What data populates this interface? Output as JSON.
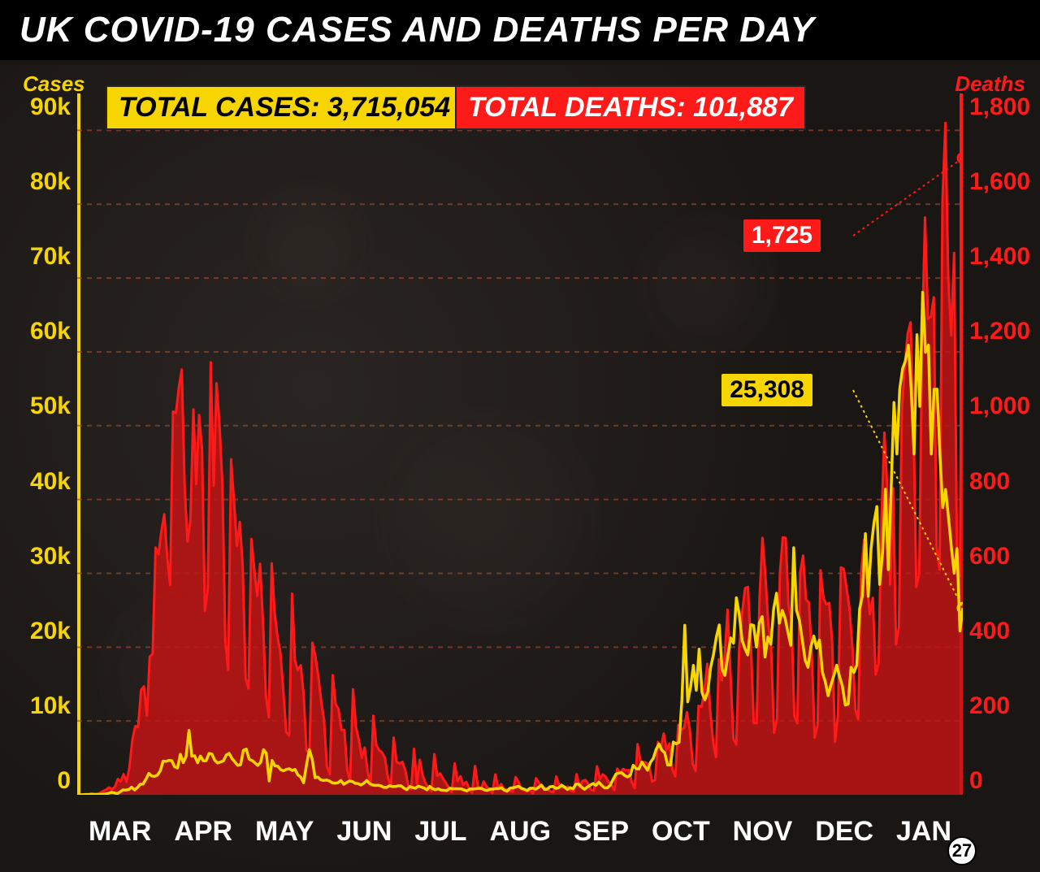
{
  "title": "UK COVID-19 CASES AND DEATHS PER DAY",
  "totals": {
    "cases_label": "TOTAL CASES: 3,715,054",
    "deaths_label": "TOTAL DEATHS: 101,887"
  },
  "axis_titles": {
    "left": "Cases",
    "right": "Deaths"
  },
  "y_left": {
    "ticks": [
      "90k",
      "80k",
      "70k",
      "60k",
      "50k",
      "40k",
      "30k",
      "20k",
      "10k",
      "0"
    ],
    "min": 0,
    "max": 95000,
    "color": "#f7d500",
    "fontsize": 30,
    "fontweight": 900
  },
  "y_right": {
    "ticks": [
      "1,800",
      "1,600",
      "1,400",
      "1,200",
      "1,000",
      "800",
      "600",
      "400",
      "200",
      "0"
    ],
    "min": 0,
    "max": 1900,
    "color": "#ff1a1a",
    "fontsize": 30,
    "fontweight": 900
  },
  "x_labels": [
    "MAR",
    "APR",
    "MAY",
    "JUN",
    "JUL",
    "AUG",
    "SEP",
    "OCT",
    "NOV",
    "DEC",
    "JAN"
  ],
  "x_label_style": {
    "color": "#ffffff",
    "fontsize": 34,
    "fontweight": 900
  },
  "callouts": {
    "deaths": {
      "value": "1,725",
      "bg": "#ff1a1a",
      "fg": "#ffffff"
    },
    "cases": {
      "value": "25,308",
      "bg": "#f7d500",
      "fg": "#000000"
    }
  },
  "date_marker": {
    "label": "27"
  },
  "chart": {
    "type": "dual-axis-line-area",
    "background": "#1a1614",
    "grid_color_yellow": "rgba(128,112,64,0.5)",
    "grid_color_red": "rgba(200,30,30,0.35)",
    "grid_dash": "6 6",
    "axis_line_width": 4,
    "n_points": 333,
    "deaths_series": {
      "color_stroke": "#ff1a1a",
      "color_fill": "rgba(200,20,20,0.82)",
      "line_width": 3,
      "y_axis": "right",
      "values": [
        0,
        0,
        1,
        2,
        2,
        4,
        2,
        1,
        6,
        10,
        14,
        20,
        14,
        22,
        43,
        36,
        56,
        35,
        74,
        149,
        186,
        183,
        284,
        294,
        214,
        374,
        382,
        670,
        652,
        714,
        760,
        644,
        568,
        1038,
        1034,
        1103,
        1152,
        839,
        686,
        744,
        1044,
        842,
        1029,
        935,
        498,
        559,
        1172,
        837,
        1115,
        1005,
        843,
        420,
        338,
        909,
        795,
        674,
        739,
        621,
        315,
        288,
        693,
        610,
        539,
        626,
        468,
        268,
        210,
        627,
        494,
        428,
        384,
        282,
        170,
        160,
        545,
        363,
        338,
        351,
        269,
        118,
        121,
        412,
        377,
        324,
        256,
        204,
        77,
        55,
        324,
        245,
        233,
        176,
        176,
        67,
        38,
        286,
        184,
        149,
        100,
        128,
        65,
        25,
        214,
        135,
        121,
        115,
        100,
        48,
        22,
        155,
        89,
        85,
        89,
        67,
        27,
        15,
        125,
        30,
        95,
        52,
        31,
        19,
        10,
        110,
        51,
        58,
        44,
        32,
        19,
        7,
        85,
        37,
        50,
        27,
        35,
        17,
        6,
        78,
        24,
        14,
        36,
        22,
        14,
        5,
        55,
        19,
        29,
        16,
        14,
        11,
        8,
        48,
        35,
        15,
        13,
        9,
        13,
        2,
        45,
        33,
        22,
        18,
        16,
        9,
        7,
        50,
        26,
        20,
        21,
        22,
        11,
        9,
        56,
        21,
        37,
        40,
        30,
        13,
        11,
        77,
        43,
        55,
        49,
        35,
        27,
        13,
        71,
        60,
        70,
        66,
        67,
        34,
        18,
        137,
        90,
        89,
        87,
        78,
        36,
        40,
        143,
        126,
        166,
        121,
        139,
        68,
        50,
        189,
        177,
        180,
        224,
        174,
        84,
        65,
        241,
        238,
        280,
        355,
        229,
        143,
        102,
        367,
        310,
        378,
        501,
        326,
        151,
        136,
        397,
        492,
        560,
        563,
        413,
        195,
        194,
        532,
        696,
        595,
        462,
        398,
        168,
        206,
        599,
        697,
        696,
        511,
        479,
        213,
        194,
        603,
        648,
        529,
        521,
        376,
        155,
        190,
        608,
        533,
        516,
        520,
        414,
        144,
        215,
        616,
        612,
        559,
        504,
        397,
        231,
        205,
        602,
        691,
        574,
        489,
        534,
        326,
        357,
        744,
        981,
        829,
        570,
        830,
        407,
        455,
        1041,
        1162,
        1248,
        1280,
        1035,
        563,
        599,
        1243,
        1564,
        1290,
        1295,
        1348,
        671,
        610,
        1610,
        1820,
        1401,
        1245,
        1468,
        631,
        592,
        1725
      ]
    },
    "cases_series": {
      "color_stroke": "#f7d500",
      "line_width": 3.5,
      "y_axis": "left",
      "marker_end": {
        "shape": "circle",
        "radius": 6,
        "stroke": "#f7d500",
        "fill": "none"
      },
      "values": [
        12,
        5,
        12,
        35,
        29,
        48,
        45,
        69,
        43,
        77,
        130,
        208,
        342,
        251,
        152,
        407,
        676,
        643,
        714,
        1035,
        665,
        967,
        1427,
        1452,
        2129,
        2890,
        2556,
        2502,
        2665,
        3250,
        4567,
        4522,
        4672,
        4618,
        3802,
        3634,
        5491,
        4344,
        5195,
        8719,
        5234,
        5288,
        4342,
        5252,
        4603,
        4617,
        5599,
        5525,
        4676,
        4301,
        4451,
        4583,
        5386,
        5614,
        4913,
        4463,
        3996,
        4076,
        6032,
        6201,
        4806,
        4649,
        4339,
        3985,
        4406,
        6111,
        5614,
        1887,
        4649,
        3923,
        3877,
        3403,
        3242,
        3446,
        3534,
        3287,
        3451,
        2684,
        2412,
        1625,
        4043,
        6111,
        4806,
        2312,
        2405,
        2013,
        1936,
        2004,
        1887,
        1613,
        1570,
        1625,
        1952,
        1427,
        1650,
        1871,
        1805,
        1557,
        1514,
        1326,
        1570,
        1940,
        1541,
        1346,
        1266,
        1295,
        1205,
        1006,
        1003,
        1240,
        1111,
        1118,
        1218,
        1213,
        901,
        689,
        1115,
        1006,
        890,
        1162,
        1052,
        922,
        674,
        1148,
        815,
        689,
        827,
        624,
        609,
        564,
        890,
        819,
        827,
        816,
        820,
        650,
        530,
        778,
        778,
        827,
        869,
        880,
        672,
        581,
        768,
        769,
        846,
        823,
        945,
        631,
        493,
        890,
        950,
        1052,
        1148,
        871,
        747,
        574,
        880,
        892,
        763,
        1009,
        1311,
        744,
        758,
        1089,
        1129,
        880,
        950,
        1311,
        1062,
        711,
        972,
        812,
        1440,
        1441,
        1033,
        747,
        1041,
        1295,
        1522,
        1276,
        1715,
        1288,
        938,
        950,
        1295,
        2087,
        2813,
        2948,
        2988,
        2621,
        2420,
        2659,
        3991,
        3539,
        3497,
        4422,
        3899,
        3330,
        4368,
        4926,
        6178,
        6874,
        6042,
        5693,
        4044,
        4044,
        7143,
        6914,
        7108,
        12872,
        22961,
        12594,
        14542,
        17540,
        14162,
        19724,
        13864,
        12872,
        13972,
        17234,
        18980,
        21331,
        23012,
        16982,
        16171,
        18804,
        21242,
        20530,
        26688,
        24405,
        20890,
        19790,
        18950,
        23065,
        22950,
        20018,
        23287,
        24141,
        18662,
        21363,
        20412,
        25177,
        27301,
        23254,
        24962,
        23904,
        21994,
        20252,
        33470,
        24957,
        23648,
        20945,
        18213,
        17272,
        20051,
        21501,
        19875,
        20964,
        16578,
        15330,
        13430,
        14879,
        16170,
        17555,
        16022,
        14718,
        12155,
        12282,
        17272,
        16578,
        17555,
        25161,
        27052,
        35383,
        26897,
        33364,
        36804,
        39036,
        28507,
        32725,
        41385,
        30501,
        41385,
        53135,
        46169,
        54990,
        57725,
        58784,
        60916,
        54940,
        46169,
        62322,
        52618,
        68053,
        59937,
        60916,
        46169,
        54940,
        54940,
        46169,
        38905,
        41346,
        37535,
        33552,
        30004,
        33355,
        22195,
        25308
      ]
    },
    "callout_lines": {
      "deaths": {
        "stroke": "#ff1a1a",
        "dash": "3 4",
        "width": 2
      },
      "cases": {
        "stroke": "#f7d500",
        "dash": "3 4",
        "width": 2
      }
    }
  }
}
